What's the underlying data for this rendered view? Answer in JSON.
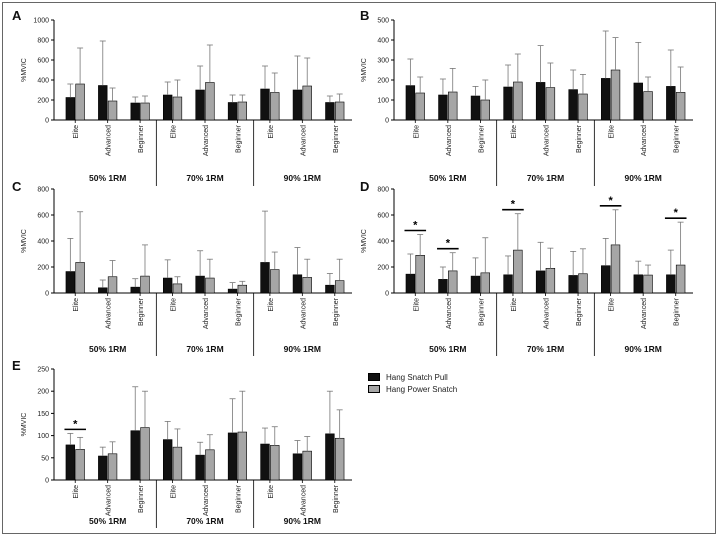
{
  "legend": {
    "items": [
      {
        "label": "Hang Snatch Pull",
        "color": "#111111"
      },
      {
        "label": "Hang Power Snatch",
        "color": "#a6a6a6"
      }
    ]
  },
  "chart_data": [
    {
      "type": "bar",
      "panel": "A",
      "ylabel": "%MVIC",
      "ylim": [
        0,
        1000
      ],
      "yticks": [
        "0",
        "200",
        "400",
        "600",
        "800",
        "1000"
      ],
      "groups": [
        "50% 1RM",
        "70% 1RM",
        "90% 1RM"
      ],
      "categories": [
        "Elite",
        "Advanced",
        "Beginner",
        "Elite",
        "Advanced",
        "Beginner",
        "Elite",
        "Advanced",
        "Beginner"
      ],
      "series": [
        {
          "name": "Hang Snatch Pull",
          "values": [
            225,
            345,
            170,
            250,
            300,
            175,
            310,
            300,
            175
          ],
          "err": [
            360,
            790,
            230,
            380,
            540,
            250,
            540,
            640,
            240
          ]
        },
        {
          "name": "Hang Power Snatch",
          "values": [
            360,
            190,
            170,
            230,
            375,
            180,
            275,
            340,
            180
          ],
          "err": [
            720,
            320,
            240,
            400,
            750,
            250,
            470,
            620,
            260
          ]
        }
      ],
      "annotations": []
    },
    {
      "type": "bar",
      "panel": "B",
      "ylabel": "%MVIC",
      "ylim": [
        0,
        500
      ],
      "yticks": [
        "0",
        "100",
        "200",
        "300",
        "400",
        "500"
      ],
      "groups": [
        "50% 1RM",
        "70% 1RM",
        "90% 1RM"
      ],
      "categories": [
        "Elite",
        "Advanced",
        "Beginner",
        "Elite",
        "Advanced",
        "Beginner",
        "Elite",
        "Advanced",
        "Beginner"
      ],
      "series": [
        {
          "name": "Hang Snatch Pull",
          "values": [
            172,
            125,
            120,
            165,
            188,
            152,
            208,
            185,
            168
          ],
          "err": [
            305,
            205,
            168,
            275,
            372,
            250,
            445,
            388,
            350
          ]
        },
        {
          "name": "Hang Power Snatch",
          "values": [
            135,
            140,
            100,
            190,
            162,
            130,
            250,
            142,
            138
          ],
          "err": [
            215,
            258,
            200,
            330,
            285,
            228,
            412,
            215,
            265
          ]
        }
      ],
      "annotations": []
    },
    {
      "type": "bar",
      "panel": "C",
      "ylabel": "%MVIC",
      "ylim": [
        0,
        800
      ],
      "yticks": [
        "0",
        "200",
        "400",
        "600",
        "800"
      ],
      "groups": [
        "50% 1RM",
        "70% 1RM",
        "90% 1RM"
      ],
      "categories": [
        "Elite",
        "Advanced",
        "Beginner",
        "Elite",
        "Advanced",
        "Beginner",
        "Elite",
        "Advanced",
        "Beginner"
      ],
      "series": [
        {
          "name": "Hang Snatch Pull",
          "values": [
            165,
            40,
            45,
            115,
            130,
            30,
            235,
            140,
            60
          ],
          "err": [
            420,
            100,
            110,
            255,
            325,
            80,
            630,
            350,
            150
          ]
        },
        {
          "name": "Hang Power Snatch",
          "values": [
            235,
            125,
            130,
            70,
            115,
            60,
            180,
            120,
            95
          ],
          "err": [
            625,
            250,
            370,
            125,
            260,
            90,
            315,
            260,
            260
          ]
        }
      ],
      "annotations": []
    },
    {
      "type": "bar",
      "panel": "D",
      "ylabel": "%MVIC",
      "ylim": [
        0,
        800
      ],
      "yticks": [
        "0",
        "200",
        "400",
        "600",
        "800"
      ],
      "groups": [
        "50% 1RM",
        "70% 1RM",
        "90% 1RM"
      ],
      "categories": [
        "Elite",
        "Advanced",
        "Beginner",
        "Elite",
        "Advanced",
        "Beginner",
        "Elite",
        "Advanced",
        "Beginner"
      ],
      "series": [
        {
          "name": "Hang Snatch Pull",
          "values": [
            145,
            105,
            130,
            140,
            170,
            135,
            210,
            140,
            140
          ],
          "err": [
            300,
            200,
            270,
            285,
            390,
            320,
            420,
            245,
            330
          ]
        },
        {
          "name": "Hang Power Snatch",
          "values": [
            290,
            170,
            155,
            330,
            190,
            148,
            370,
            138,
            215
          ],
          "err": [
            450,
            310,
            425,
            610,
            345,
            340,
            640,
            215,
            545
          ]
        }
      ],
      "annotations": [
        {
          "text": "*",
          "category": 0
        },
        {
          "text": "*",
          "category": 1
        },
        {
          "text": "*",
          "category": 3
        },
        {
          "text": "*",
          "category": 6
        },
        {
          "text": "*",
          "category": 8
        }
      ]
    },
    {
      "type": "bar",
      "panel": "E",
      "ylabel": "%MVIC",
      "ylim": [
        0,
        250
      ],
      "yticks": [
        "0",
        "50",
        "100",
        "150",
        "200",
        "250"
      ],
      "groups": [
        "50% 1RM",
        "70% 1RM",
        "90% 1RM"
      ],
      "categories": [
        "Elite",
        "Advanced",
        "Beginner",
        "Elite",
        "Advanced",
        "Beginner",
        "Elite",
        "Advanced",
        "Beginner"
      ],
      "series": [
        {
          "name": "Hang Snatch Pull",
          "values": [
            79,
            54,
            111,
            91,
            56,
            106,
            81,
            59,
            104
          ],
          "err": [
            105,
            74,
            210,
            132,
            85,
            183,
            117,
            89,
            200
          ]
        },
        {
          "name": "Hang Power Snatch",
          "values": [
            69,
            59,
            118,
            74,
            68,
            108,
            78,
            65,
            94
          ],
          "err": [
            96,
            86,
            200,
            115,
            102,
            200,
            120,
            98,
            158
          ]
        }
      ],
      "annotations": [
        {
          "text": "*",
          "category": 0
        }
      ]
    }
  ]
}
